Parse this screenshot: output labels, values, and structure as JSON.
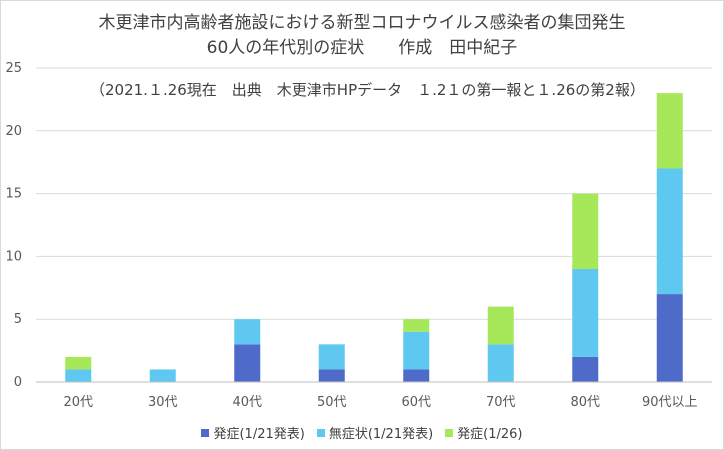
{
  "chart_data": {
    "type": "bar",
    "stacked": true,
    "title_line1": "木更津市内高齢者施設における新型コロナウイルス感染者の集団発生",
    "title_line2": "60人の年代別の症状　　作成　田中紀子",
    "subtitle": "（2021.１.26現在　出典　木更津市HPデータ　１.2１の第一報と１.26の第2報）",
    "categories": [
      "20代",
      "30代",
      "40代",
      "50代",
      "60代",
      "70代",
      "80代",
      "90代以上"
    ],
    "series": [
      {
        "name": "発症(1/21発表)",
        "color": "#4f6bc9",
        "values": [
          0,
          0,
          3,
          1,
          1,
          0,
          2,
          7
        ]
      },
      {
        "name": "無症状(1/21発表)",
        "color": "#5ec8f0",
        "values": [
          1,
          1,
          2,
          2,
          3,
          3,
          7,
          10
        ]
      },
      {
        "name": "発症(1/26)",
        "color": "#a6e85a",
        "values": [
          1,
          0,
          0,
          0,
          1,
          3,
          6,
          6
        ]
      }
    ],
    "ylim": [
      0,
      25
    ],
    "yticks": [
      0,
      5,
      10,
      15,
      20,
      25
    ],
    "grid": true,
    "legend_position": "bottom"
  }
}
